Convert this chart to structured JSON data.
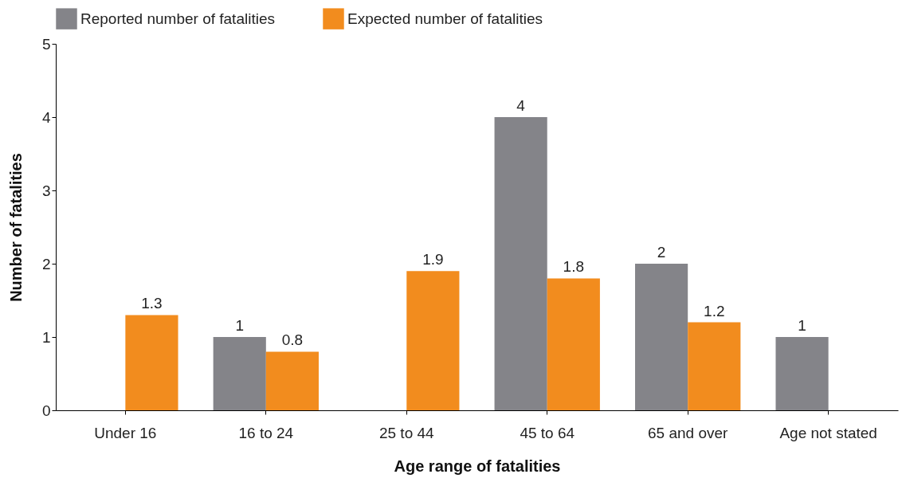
{
  "chart_data": {
    "type": "bar",
    "xlabel": "Age range of fatalities",
    "ylabel": "Number of fatalities",
    "categories": [
      "Under 16",
      "16 to 24",
      "25 to 44",
      "45 to 64",
      "65 and over",
      "Age not stated"
    ],
    "series": [
      {
        "name": "Reported number of fatalities",
        "color": "#848489",
        "values": [
          null,
          1,
          null,
          4,
          2,
          1
        ]
      },
      {
        "name": "Expected number of fatalities",
        "color": "#f28c1e",
        "values": [
          1.3,
          0.8,
          1.9,
          1.8,
          1.2,
          null
        ]
      }
    ],
    "ylim": [
      0,
      5
    ],
    "yticks": [
      0,
      1,
      2,
      3,
      4,
      5
    ],
    "grid": false,
    "legend": "top",
    "data_labels": true
  }
}
